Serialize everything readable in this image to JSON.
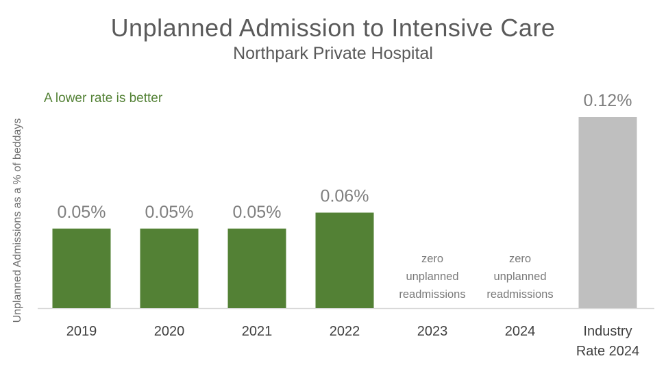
{
  "chart_data": {
    "type": "bar",
    "title": "Unplanned Admission to Intensive Care",
    "subtitle": "Northpark Private Hospital",
    "annotation": "A lower rate is better",
    "ylabel": "Unplanned Admissions as a % of beddays",
    "xlabel": "",
    "ylim": [
      0,
      0.12
    ],
    "grid": false,
    "categories": [
      [
        "2019"
      ],
      [
        "2020"
      ],
      [
        "2021"
      ],
      [
        "2022"
      ],
      [
        "2023"
      ],
      [
        "2024"
      ],
      [
        "Industry",
        "Rate 2024"
      ]
    ],
    "values": [
      0.05,
      0.05,
      0.05,
      0.06,
      0,
      0,
      0.12
    ],
    "data_labels": [
      "0.05%",
      "0.05%",
      "0.05%",
      "0.06%",
      [
        "zero",
        "unplanned",
        "readmissions"
      ],
      [
        "zero",
        "unplanned",
        "readmissions"
      ],
      "0.12%"
    ],
    "colors": [
      "#538135",
      "#538135",
      "#538135",
      "#538135",
      "#538135",
      "#538135",
      "#bfbfbf"
    ]
  }
}
